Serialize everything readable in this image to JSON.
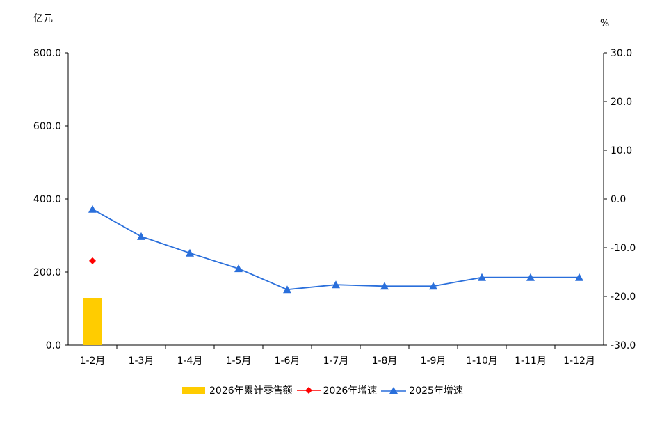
{
  "chart_data": {
    "type": "bar+line",
    "y_left_label": "亿元",
    "y_right_label": "%",
    "categories": [
      "1-2月",
      "1-3月",
      "1-4月",
      "1-5月",
      "1-6月",
      "1-7月",
      "1-8月",
      "1-9月",
      "1-10月",
      "1-11月",
      "1-12月"
    ],
    "y_left_ticks": [
      "0.0",
      "200.0",
      "400.0",
      "600.0",
      "800.0"
    ],
    "y_right_ticks": [
      "-30.0",
      "-20.0",
      "-10.0",
      "0.0",
      "10.0",
      "20.0",
      "30.0"
    ],
    "ylim_left": [
      0,
      800
    ],
    "ylim_right": [
      -30,
      30
    ],
    "grid": false,
    "legend_position": "bottom",
    "series": [
      {
        "name": "2026年累计零售额",
        "type": "bar",
        "axis": "left",
        "color": "#FFCC00",
        "values": [
          128,
          null,
          null,
          null,
          null,
          null,
          null,
          null,
          null,
          null,
          null
        ]
      },
      {
        "name": "2026年增速",
        "type": "line",
        "axis": "right",
        "color": "#FF0000",
        "marker": "diamond",
        "values": [
          -12.7,
          null,
          null,
          null,
          null,
          null,
          null,
          null,
          null,
          null,
          null
        ]
      },
      {
        "name": "2025年增速",
        "type": "line",
        "axis": "right",
        "color": "#2A6FDB",
        "marker": "triangle",
        "values": [
          -2.1,
          -7.7,
          -11.1,
          -14.3,
          -18.6,
          -17.6,
          -17.9,
          -17.9,
          -16.1,
          -16.1,
          -16.1
        ]
      }
    ]
  }
}
